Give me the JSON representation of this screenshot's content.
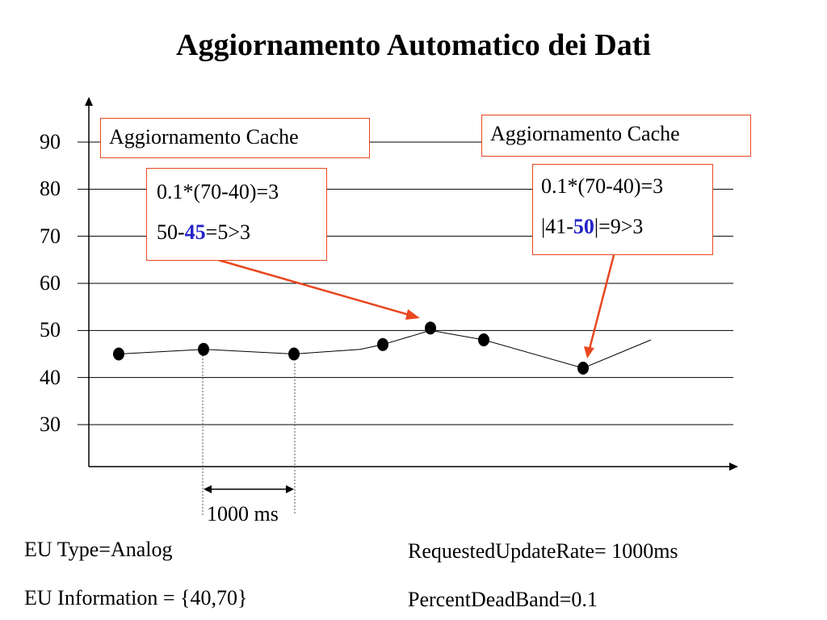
{
  "title": "Aggiornamento Automatico dei Dati",
  "chart_data": {
    "type": "line",
    "y_ticks": [
      90,
      80,
      70,
      60,
      50,
      40,
      30
    ],
    "ylim": [
      30,
      90
    ],
    "grid": true,
    "series": [
      {
        "values": [
          45,
          46,
          45,
          46,
          47,
          50,
          48,
          42,
          48
        ]
      }
    ],
    "sampled_points": [
      {
        "y": 45.0
      },
      {
        "y": 46.0
      },
      {
        "y": 45.0
      },
      {
        "y": 47.0
      },
      {
        "y": 50.5
      },
      {
        "y": 48.0
      },
      {
        "y": 42.0
      }
    ],
    "interval_label": "1000 ms",
    "annotations": [
      {
        "label": "Aggiornamento Cache"
      },
      {
        "label": "Aggiornamento Cache"
      }
    ],
    "callouts": [
      {
        "line1": "0.1*(70-40)=3",
        "line2_pre": "50-",
        "line2_hl": "45",
        "line2_post": "=5>3"
      },
      {
        "line1": "0.1*(70-40)=3",
        "line2_pre": "|41-",
        "line2_hl": "50",
        "line2_post": "|=9>3"
      }
    ]
  },
  "footer": {
    "eu_type": "EU Type=Analog",
    "eu_info": "EU Information = {40,70}",
    "update_rate": "RequestedUpdateRate= 1000ms",
    "deadband": "PercentDeadBand=0.1"
  },
  "colors": {
    "callout_border": "#e8471f",
    "arrow": "#e8471f",
    "highlight": "#2323c8"
  }
}
